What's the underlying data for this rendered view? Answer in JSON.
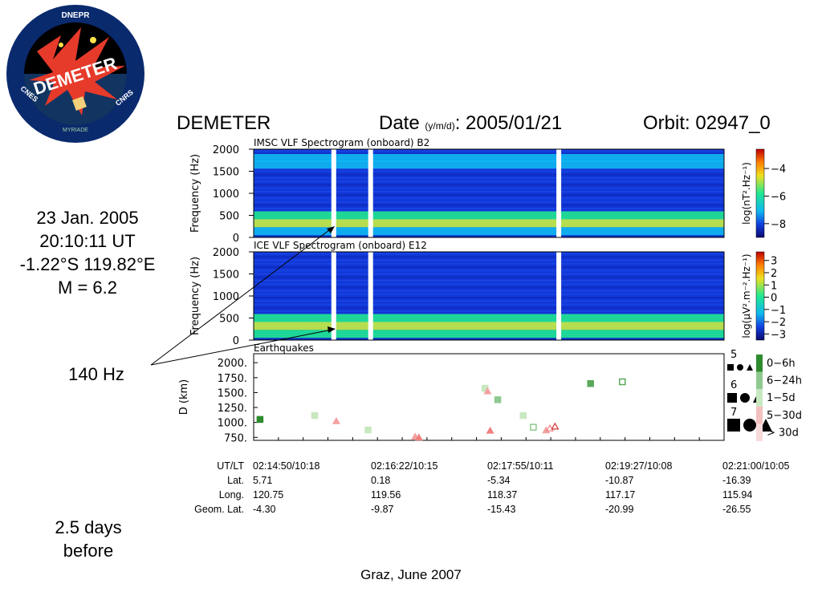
{
  "logo": {
    "name_text": "DEMETER",
    "top_text": "DNEPR",
    "left_text": "CNES",
    "right_text": "CNRS",
    "bottom_text": "MYRIADE",
    "colors": {
      "ring": "#0a2a6e",
      "fire": "#e63a2a",
      "star": "#ffe24a",
      "sky": "#000000"
    }
  },
  "header": {
    "title": "DEMETER",
    "date_label": "Date",
    "date_format": "(y/m/d)",
    "date_value": ": 2005/01/21",
    "orbit": "Orbit: 02947_0"
  },
  "earthquake_info": {
    "date": "23 Jan. 2005",
    "time": "20:10:11 UT",
    "location": "-1.22°S 119.82°E",
    "magnitude": "M = 6.2"
  },
  "frequency_annotation": "140 Hz",
  "days_before": "2.5 days before",
  "footer": "Graz, June 2007",
  "orbit_table": {
    "row_labels": [
      "UT/LT",
      "Lat.",
      "Long.",
      "Geom. Lat."
    ],
    "columns": [
      [
        "02:14:50/10:18",
        "5.71",
        "120.75",
        "-4.30"
      ],
      [
        "02:16:22/10:15",
        "0.18",
        "119.56",
        "-9.87"
      ],
      [
        "02:17:55/10:11",
        "-5.34",
        "118.37",
        "-15.43"
      ],
      [
        "02:19:27/10:08",
        "-10.87",
        "117.17",
        "-20.99"
      ],
      [
        "02:21:00/10:05",
        "-16.39",
        "115.94",
        "-26.55"
      ]
    ]
  },
  "chart_data": [
    {
      "type": "heatmap",
      "title": "IMSC VLF Spectrogram (onboard) B2",
      "ylabel": "Frequency (Hz)",
      "ylim": [
        0,
        2000
      ],
      "y_ticks": [
        "2000",
        "1500",
        "1000",
        "500",
        "0"
      ],
      "colorbar_label": "log(nT².Hz⁻¹)",
      "colorbar_ticks": [
        "−4",
        "−6",
        "−8"
      ],
      "bands_hz": [
        {
          "f": 1800,
          "level": 0.45
        },
        {
          "f": 1650,
          "level": 0.55
        },
        {
          "f": 500,
          "level": 0.7
        },
        {
          "f": 320,
          "level": 0.85
        },
        {
          "f": 140,
          "level": 0.55
        }
      ],
      "gaps_time": [
        "02:15:53",
        "02:16:22",
        "02:18:50"
      ]
    },
    {
      "type": "heatmap",
      "title": "ICE VLF Spectrogram (onboard) E12",
      "ylabel": "Frequency (Hz)",
      "ylim": [
        0,
        2000
      ],
      "y_ticks": [
        "2000",
        "1500",
        "1000",
        "500",
        "0"
      ],
      "colorbar_label": "log(μV².m⁻².Hz⁻¹)",
      "colorbar_ticks": [
        "3",
        "2",
        "1",
        "0",
        "−1",
        "−2",
        "−3"
      ],
      "bands_hz": [
        {
          "f": 500,
          "level": 0.7
        },
        {
          "f": 320,
          "level": 0.85
        },
        {
          "f": 140,
          "level": 0.75
        }
      ],
      "gaps_time": [
        "02:15:53",
        "02:16:22",
        "02:18:50"
      ]
    },
    {
      "type": "scatter",
      "title": "Earthquakes",
      "ylabel": "D (km)",
      "ylim": [
        700,
        2150
      ],
      "y_ticks": [
        "2000.",
        "1750.",
        "1500.",
        "1250.",
        "1000.",
        "750."
      ],
      "x_time_range": [
        "02:14:50",
        "02:21:00"
      ],
      "magnitude_legend": [
        "5",
        "6",
        "7"
      ],
      "time_legend": [
        {
          "label": "0−6h",
          "color": "#2e8b2e"
        },
        {
          "label": "6−24h",
          "color": "#8fc98f"
        },
        {
          "label": "1−5d",
          "color": "#c8e8c0"
        },
        {
          "label": "5−30d",
          "color": "#f3c0c0"
        },
        {
          "label": "> 30d",
          "color": "#f8dada"
        }
      ],
      "points": [
        {
          "t": "02:14:55",
          "d": 1050,
          "shape": "square",
          "color": "#2e8b2e"
        },
        {
          "t": "02:15:38",
          "d": 1115,
          "shape": "square",
          "color": "#c8e8c0"
        },
        {
          "t": "02:15:55",
          "d": 1020,
          "shape": "triangle",
          "color": "#f3a0a0"
        },
        {
          "t": "02:16:20",
          "d": 875,
          "shape": "square",
          "color": "#c8e8c0"
        },
        {
          "t": "02:16:57",
          "d": 760,
          "shape": "triangle",
          "color": "#f3a0a0"
        },
        {
          "t": "02:17:00",
          "d": 745,
          "shape": "triangle",
          "color": "#f08080"
        },
        {
          "t": "02:17:52",
          "d": 1570,
          "shape": "square",
          "color": "#c8e8c0"
        },
        {
          "t": "02:17:54",
          "d": 1520,
          "shape": "triangle",
          "color": "#f3a0a0"
        },
        {
          "t": "02:17:56",
          "d": 860,
          "shape": "triangle",
          "color": "#f08080"
        },
        {
          "t": "02:18:02",
          "d": 1380,
          "shape": "square",
          "color": "#8fc98f"
        },
        {
          "t": "02:18:22",
          "d": 1115,
          "shape": "square",
          "color": "#c8e8c0"
        },
        {
          "t": "02:18:30",
          "d": 920,
          "shape": "square-open",
          "color": "#8fc98f"
        },
        {
          "t": "02:18:40",
          "d": 865,
          "shape": "triangle",
          "color": "#f3a0a0"
        },
        {
          "t": "02:18:43",
          "d": 900,
          "shape": "triangle-open",
          "color": "#f08080"
        },
        {
          "t": "02:18:47",
          "d": 930,
          "shape": "triangle-open",
          "color": "#d03030"
        },
        {
          "t": "02:19:15",
          "d": 1650,
          "shape": "square",
          "color": "#5aa85a"
        },
        {
          "t": "02:19:40",
          "d": 1680,
          "shape": "square-open",
          "color": "#5aa85a"
        }
      ]
    }
  ]
}
